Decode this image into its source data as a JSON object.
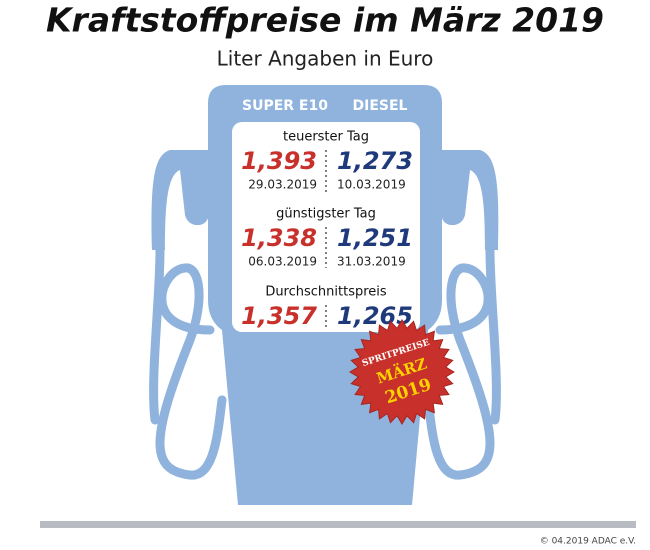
{
  "title": "Kraftstoffpreise im März 2019",
  "subtitle": "Liter Angaben in Euro",
  "columns": [
    "SUPER E10",
    "DIESEL"
  ],
  "sections": [
    {
      "label": "teuerster Tag",
      "super_e10": {
        "price": "1,393",
        "date": "29.03.2019"
      },
      "diesel": {
        "price": "1,273",
        "date": "10.03.2019"
      }
    },
    {
      "label": "günstigster Tag",
      "super_e10": {
        "price": "1,338",
        "date": "06.03.2019"
      },
      "diesel": {
        "price": "1,251",
        "date": "31.03.2019"
      }
    },
    {
      "label": "Durchschnittspreis",
      "super_e10": {
        "price": "1,357"
      },
      "diesel": {
        "price": "1,265"
      }
    }
  ],
  "badge": [
    "SPRITPREISE",
    "MÄRZ",
    "2019"
  ],
  "footer": "© 04.2019 ADAC e.V."
}
